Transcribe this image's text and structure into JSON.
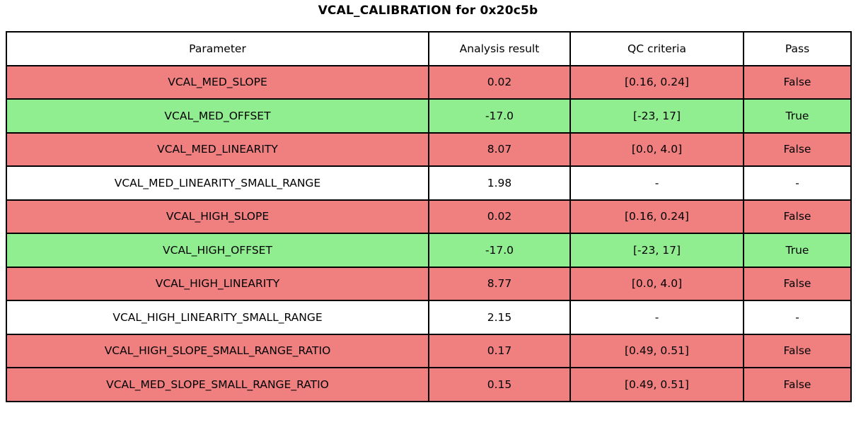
{
  "chart_data": {
    "type": "table",
    "title": "VCAL_CALIBRATION for 0x20c5b",
    "columns": [
      "Parameter",
      "Analysis result",
      "QC criteria",
      "Pass"
    ],
    "rows": [
      {
        "parameter": "VCAL_MED_SLOPE",
        "result": "0.02",
        "criteria": "[0.16, 0.24]",
        "pass": "False",
        "status": "fail"
      },
      {
        "parameter": "VCAL_MED_OFFSET",
        "result": "-17.0",
        "criteria": "[-23, 17]",
        "pass": "True",
        "status": "pass"
      },
      {
        "parameter": "VCAL_MED_LINEARITY",
        "result": "8.07",
        "criteria": "[0.0, 4.0]",
        "pass": "False",
        "status": "fail"
      },
      {
        "parameter": "VCAL_MED_LINEARITY_SMALL_RANGE",
        "result": "1.98",
        "criteria": "-",
        "pass": "-",
        "status": "none"
      },
      {
        "parameter": "VCAL_HIGH_SLOPE",
        "result": "0.02",
        "criteria": "[0.16, 0.24]",
        "pass": "False",
        "status": "fail"
      },
      {
        "parameter": "VCAL_HIGH_OFFSET",
        "result": "-17.0",
        "criteria": "[-23, 17]",
        "pass": "True",
        "status": "pass"
      },
      {
        "parameter": "VCAL_HIGH_LINEARITY",
        "result": "8.77",
        "criteria": "[0.0, 4.0]",
        "pass": "False",
        "status": "fail"
      },
      {
        "parameter": "VCAL_HIGH_LINEARITY_SMALL_RANGE",
        "result": "2.15",
        "criteria": "-",
        "pass": "-",
        "status": "none"
      },
      {
        "parameter": "VCAL_HIGH_SLOPE_SMALL_RANGE_RATIO",
        "result": "0.17",
        "criteria": "[0.49, 0.51]",
        "pass": "False",
        "status": "fail"
      },
      {
        "parameter": "VCAL_MED_SLOPE_SMALL_RANGE_RATIO",
        "result": "0.15",
        "criteria": "[0.49, 0.51]",
        "pass": "False",
        "status": "fail"
      }
    ],
    "legend": "row color indicates QC pass/fail",
    "grid": true
  },
  "colors": {
    "fail": "#f08080",
    "pass": "#90ee90",
    "none": "#ffffff",
    "border": "#000000",
    "background": "#ffffff"
  }
}
